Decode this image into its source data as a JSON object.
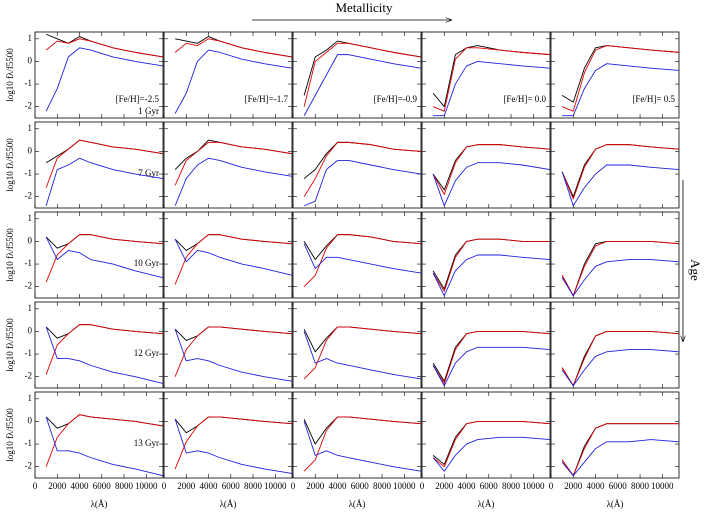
{
  "chart_data": {
    "type": "line",
    "col_label": "Metallicity",
    "row_label": "Age",
    "xlabel": "λ(Å)",
    "ylabel": "log10 fλ/f5500",
    "x": [
      1000,
      2000,
      3000,
      4000,
      5000,
      7000,
      9000,
      11500
    ],
    "xlim": [
      0,
      11500
    ],
    "ylim": [
      -2.5,
      1.3
    ],
    "xticks": [
      0,
      2000,
      4000,
      6000,
      8000,
      10000
    ],
    "yticks": [
      -2,
      -1,
      0,
      1
    ],
    "series_colors": [
      "#000000",
      "#e00000",
      "#2020e0"
    ],
    "panels": [
      {
        "feh": "[Fe/H]=-2.5",
        "age": "1 Gyr",
        "series": [
          [
            1.2,
            1.0,
            0.8,
            1.1,
            0.9,
            0.6,
            0.4,
            0.2
          ],
          [
            0.5,
            0.9,
            0.8,
            1.0,
            0.9,
            0.6,
            0.4,
            0.2
          ],
          [
            -2.2,
            -1.2,
            0.2,
            0.6,
            0.5,
            0.2,
            0.0,
            -0.2
          ]
        ]
      },
      {
        "feh": "[Fe/H]=-1.7",
        "series": [
          [
            1.0,
            0.9,
            0.8,
            1.1,
            0.9,
            0.6,
            0.4,
            0.2
          ],
          [
            0.4,
            0.8,
            0.7,
            1.0,
            0.9,
            0.6,
            0.4,
            0.2
          ],
          [
            -2.3,
            -1.4,
            0.0,
            0.5,
            0.4,
            0.1,
            -0.1,
            -0.3
          ]
        ]
      },
      {
        "feh": "[Fe/H]=-0.9",
        "series": [
          [
            -1.5,
            0.2,
            0.5,
            0.9,
            0.8,
            0.6,
            0.4,
            0.2
          ],
          [
            -2.0,
            0.0,
            0.4,
            0.8,
            0.8,
            0.6,
            0.4,
            0.2
          ],
          [
            -2.4,
            -1.5,
            -0.6,
            0.3,
            0.3,
            0.1,
            -0.1,
            -0.3
          ]
        ]
      },
      {
        "feh": "[Fe/H]= 0.0",
        "series": [
          [
            -1.4,
            -2.0,
            0.3,
            0.6,
            0.7,
            0.5,
            0.4,
            0.3
          ],
          [
            -2.0,
            -2.2,
            0.1,
            0.6,
            0.6,
            0.5,
            0.4,
            0.3
          ],
          [
            -2.4,
            -2.4,
            -1.0,
            -0.2,
            0.0,
            -0.1,
            -0.2,
            -0.3
          ]
        ]
      },
      {
        "feh": "[Fe/H]= 0.5",
        "series": [
          [
            -1.5,
            -1.8,
            -0.3,
            0.6,
            0.7,
            0.6,
            0.5,
            0.4
          ],
          [
            -2.0,
            -2.2,
            -0.5,
            0.5,
            0.7,
            0.6,
            0.5,
            0.4
          ],
          [
            -2.4,
            -2.4,
            -1.2,
            -0.4,
            -0.1,
            -0.2,
            -0.3,
            -0.4
          ]
        ]
      },
      {
        "age": "7 Gyr",
        "series": [
          [
            -0.5,
            -0.2,
            0.1,
            0.5,
            0.4,
            0.2,
            0.1,
            -0.1
          ],
          [
            -1.6,
            -0.3,
            0.1,
            0.5,
            0.4,
            0.2,
            0.1,
            -0.1
          ],
          [
            -2.4,
            -0.8,
            -0.6,
            -0.3,
            -0.5,
            -0.8,
            -1.0,
            -1.2
          ]
        ]
      },
      {
        "series": [
          [
            -0.8,
            -0.3,
            0.0,
            0.5,
            0.4,
            0.2,
            0.1,
            -0.1
          ],
          [
            -1.5,
            -0.4,
            0.0,
            0.4,
            0.4,
            0.2,
            0.1,
            -0.1
          ],
          [
            -2.4,
            -1.2,
            -0.6,
            -0.3,
            -0.4,
            -0.7,
            -0.9,
            -1.1
          ]
        ]
      },
      {
        "series": [
          [
            -1.2,
            -0.8,
            -0.1,
            0.4,
            0.4,
            0.3,
            0.1,
            0.0
          ],
          [
            -2.0,
            -1.2,
            -0.2,
            0.4,
            0.4,
            0.3,
            0.1,
            0.0
          ],
          [
            -2.4,
            -2.2,
            -0.8,
            -0.4,
            -0.4,
            -0.6,
            -0.8,
            -1.0
          ]
        ]
      },
      {
        "series": [
          [
            -1.0,
            -1.7,
            -0.4,
            0.2,
            0.3,
            0.3,
            0.2,
            0.1
          ],
          [
            -1.0,
            -1.9,
            -0.5,
            0.2,
            0.3,
            0.3,
            0.2,
            0.1
          ],
          [
            -1.0,
            -2.4,
            -1.3,
            -0.7,
            -0.5,
            -0.5,
            -0.6,
            -0.8
          ]
        ]
      },
      {
        "series": [
          [
            -0.9,
            -2.0,
            -0.6,
            0.1,
            0.3,
            0.3,
            0.2,
            0.1
          ],
          [
            -0.9,
            -2.1,
            -0.7,
            0.1,
            0.3,
            0.3,
            0.2,
            0.1
          ],
          [
            -0.9,
            -2.4,
            -1.6,
            -1.0,
            -0.6,
            -0.6,
            -0.7,
            -0.8
          ]
        ]
      },
      {
        "age": "10 Gyr",
        "series": [
          [
            0.2,
            -0.3,
            -0.1,
            0.3,
            0.3,
            0.1,
            0.0,
            -0.1
          ],
          [
            -1.8,
            -0.6,
            -0.1,
            0.3,
            0.3,
            0.1,
            0.0,
            -0.1
          ],
          [
            0.2,
            -0.8,
            -0.4,
            -0.5,
            -0.8,
            -1.0,
            -1.3,
            -1.6
          ]
        ]
      },
      {
        "series": [
          [
            0.1,
            -0.4,
            -0.1,
            0.3,
            0.3,
            0.1,
            0.0,
            -0.1
          ],
          [
            -1.9,
            -0.7,
            -0.1,
            0.3,
            0.3,
            0.1,
            0.0,
            -0.1
          ],
          [
            0.1,
            -0.9,
            -0.4,
            -0.5,
            -0.7,
            -1.0,
            -1.2,
            -1.5
          ]
        ]
      },
      {
        "series": [
          [
            0.0,
            -0.8,
            -0.2,
            0.3,
            0.3,
            0.2,
            0.0,
            -0.1
          ],
          [
            -2.0,
            -1.5,
            -0.3,
            0.3,
            0.3,
            0.2,
            0.0,
            -0.1
          ],
          [
            -0.1,
            -1.2,
            -0.7,
            -0.7,
            -0.8,
            -1.0,
            -1.2,
            -1.4
          ]
        ]
      },
      {
        "series": [
          [
            -1.3,
            -2.1,
            -0.6,
            0.0,
            0.1,
            0.1,
            0.0,
            0.0
          ],
          [
            -1.4,
            -2.2,
            -0.7,
            0.0,
            0.1,
            0.1,
            0.0,
            0.0
          ],
          [
            -1.4,
            -2.4,
            -1.3,
            -0.8,
            -0.6,
            -0.6,
            -0.7,
            -0.8
          ]
        ]
      },
      {
        "series": [
          [
            -1.5,
            -2.4,
            -1.0,
            -0.1,
            0.0,
            0.0,
            0.0,
            -0.1
          ],
          [
            -1.5,
            -2.4,
            -1.1,
            -0.2,
            0.0,
            0.0,
            0.0,
            -0.1
          ],
          [
            -1.6,
            -2.4,
            -1.7,
            -1.1,
            -0.9,
            -0.8,
            -0.8,
            -0.9
          ]
        ]
      },
      {
        "age": "12 Gyr",
        "series": [
          [
            0.2,
            -0.3,
            -0.1,
            0.3,
            0.3,
            0.1,
            0.0,
            -0.1
          ],
          [
            -1.9,
            -0.6,
            -0.1,
            0.3,
            0.3,
            0.1,
            0.0,
            -0.1
          ],
          [
            0.2,
            -1.2,
            -1.2,
            -1.3,
            -1.5,
            -1.8,
            -2.0,
            -2.3
          ]
        ]
      },
      {
        "series": [
          [
            0.1,
            -0.4,
            -0.2,
            0.2,
            0.2,
            0.1,
            0.0,
            -0.1
          ],
          [
            -2.0,
            -0.8,
            -0.2,
            0.2,
            0.2,
            0.1,
            0.0,
            -0.1
          ],
          [
            0.1,
            -1.3,
            -1.2,
            -1.3,
            -1.5,
            -1.8,
            -2.0,
            -2.2
          ]
        ]
      },
      {
        "series": [
          [
            0.1,
            -0.9,
            -0.3,
            0.2,
            0.2,
            0.1,
            0.0,
            -0.1
          ],
          [
            -2.1,
            -1.6,
            -0.4,
            0.2,
            0.2,
            0.1,
            0.0,
            -0.1
          ],
          [
            0.0,
            -1.4,
            -1.2,
            -1.4,
            -1.5,
            -1.7,
            -1.9,
            -2.1
          ]
        ]
      },
      {
        "series": [
          [
            -1.4,
            -2.2,
            -0.7,
            -0.1,
            0.0,
            0.0,
            0.0,
            -0.1
          ],
          [
            -1.5,
            -2.3,
            -0.8,
            -0.1,
            0.0,
            0.0,
            0.0,
            -0.1
          ],
          [
            -1.5,
            -2.4,
            -1.4,
            -0.9,
            -0.7,
            -0.7,
            -0.7,
            -0.8
          ]
        ]
      },
      {
        "series": [
          [
            -1.6,
            -2.4,
            -1.1,
            -0.2,
            0.0,
            0.0,
            0.0,
            -0.1
          ],
          [
            -1.6,
            -2.4,
            -1.2,
            -0.2,
            0.0,
            0.0,
            0.0,
            -0.1
          ],
          [
            -1.7,
            -2.4,
            -1.7,
            -1.1,
            -0.9,
            -0.8,
            -0.8,
            -0.9
          ]
        ]
      },
      {
        "age": "13 Gyr",
        "series": [
          [
            0.2,
            -0.3,
            -0.1,
            0.3,
            0.2,
            0.1,
            0.0,
            -0.2
          ],
          [
            -2.0,
            -0.7,
            -0.1,
            0.3,
            0.2,
            0.1,
            0.0,
            -0.2
          ],
          [
            0.2,
            -1.3,
            -1.3,
            -1.4,
            -1.6,
            -1.9,
            -2.1,
            -2.4
          ]
        ]
      },
      {
        "series": [
          [
            0.1,
            -0.5,
            -0.2,
            0.2,
            0.2,
            0.1,
            0.0,
            -0.1
          ],
          [
            -2.1,
            -0.9,
            -0.2,
            0.2,
            0.2,
            0.1,
            0.0,
            -0.1
          ],
          [
            0.1,
            -1.4,
            -1.3,
            -1.4,
            -1.6,
            -1.9,
            -2.1,
            -2.3
          ]
        ]
      },
      {
        "series": [
          [
            0.1,
            -1.0,
            -0.3,
            0.2,
            0.2,
            0.1,
            0.0,
            -0.1
          ],
          [
            -2.2,
            -1.7,
            -0.4,
            0.2,
            0.2,
            0.1,
            0.0,
            -0.1
          ],
          [
            0.0,
            -1.5,
            -1.3,
            -1.5,
            -1.6,
            -1.8,
            -2.0,
            -2.2
          ]
        ]
      },
      {
        "series": [
          [
            -1.5,
            -1.9,
            -0.7,
            -0.1,
            0.0,
            0.0,
            0.0,
            -0.1
          ],
          [
            -1.6,
            -2.0,
            -0.8,
            -0.1,
            0.0,
            0.0,
            0.0,
            -0.1
          ],
          [
            -1.6,
            -2.2,
            -1.5,
            -1.0,
            -0.8,
            -0.7,
            -0.7,
            -0.8
          ]
        ]
      },
      {
        "series": [
          [
            -1.7,
            -2.4,
            -1.1,
            -0.3,
            -0.1,
            -0.1,
            -0.1,
            -0.1
          ],
          [
            -1.7,
            -2.4,
            -1.2,
            -0.3,
            -0.1,
            -0.1,
            -0.1,
            -0.1
          ],
          [
            -1.8,
            -2.4,
            -1.8,
            -1.2,
            -0.9,
            -0.9,
            -0.8,
            -0.9
          ]
        ]
      }
    ]
  }
}
